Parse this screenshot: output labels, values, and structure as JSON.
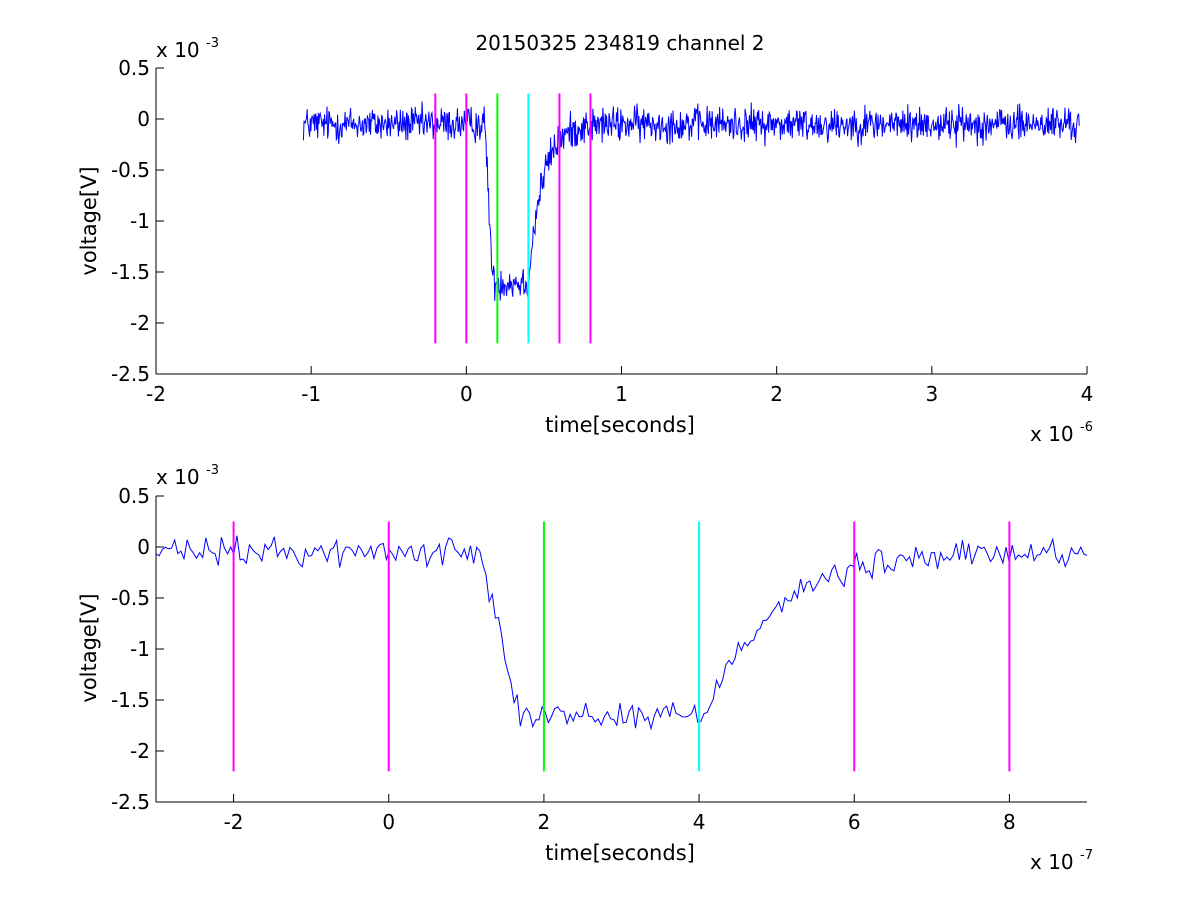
{
  "figure": {
    "title": "20150325 234819 channel 2"
  },
  "colors": {
    "trace": "#0000ff",
    "magenta": "#ff00ff",
    "green": "#00ff00",
    "cyan": "#00ffff",
    "axis": "#000000"
  },
  "chart_data": [
    {
      "type": "line",
      "title": "20150325 234819 channel 2",
      "xlabel": "time[seconds]",
      "ylabel": "voltage[V]",
      "x_multiplier": "x 10",
      "x_exponent": "-6",
      "y_multiplier": "x 10",
      "y_exponent": "-3",
      "xlim": [
        -2,
        4
      ],
      "ylim": [
        -2.5,
        0.5
      ],
      "xticks": [
        -2,
        -1,
        0,
        1,
        2,
        3,
        4
      ],
      "xtick_labels": [
        "-2",
        "-1",
        "0",
        "1",
        "2",
        "3",
        "4"
      ],
      "yticks": [
        -2.5,
        -2,
        -1.5,
        -1,
        -0.5,
        0,
        0.5
      ],
      "ytick_labels": [
        "-2.5",
        "-2",
        "-1.5",
        "-1",
        "-0.5",
        "0",
        "0.5"
      ],
      "grid": false,
      "trace": {
        "x_start": -1.05,
        "x_end": 3.95,
        "baseline": -0.05,
        "low_level": -1.6,
        "fall_start": 0.12,
        "fall_end": 0.17,
        "rise_start": 0.4,
        "rise_end": 0.8,
        "noise_amplitude": 0.15,
        "points": 1250
      },
      "markers": [
        {
          "x": -0.2,
          "color": "magenta",
          "y_from": -2.2,
          "y_to": 0.25
        },
        {
          "x": 0.0,
          "color": "magenta",
          "y_from": -2.2,
          "y_to": 0.25
        },
        {
          "x": 0.2,
          "color": "green",
          "y_from": -2.2,
          "y_to": 0.25
        },
        {
          "x": 0.4,
          "color": "cyan",
          "y_from": -2.2,
          "y_to": 0.25
        },
        {
          "x": 0.6,
          "color": "magenta",
          "y_from": -2.2,
          "y_to": 0.25
        },
        {
          "x": 0.8,
          "color": "magenta",
          "y_from": -2.2,
          "y_to": 0.25
        }
      ]
    },
    {
      "type": "line",
      "title": "",
      "xlabel": "time[seconds]",
      "ylabel": "voltage[V]",
      "x_multiplier": "x 10",
      "x_exponent": "-7",
      "y_multiplier": "x 10",
      "y_exponent": "-3",
      "xlim": [
        -3,
        9
      ],
      "ylim": [
        -2.5,
        0.5
      ],
      "xticks": [
        -2,
        0,
        2,
        4,
        6,
        8
      ],
      "xtick_labels": [
        "-2",
        "0",
        "2",
        "4",
        "6",
        "8"
      ],
      "yticks": [
        -2.5,
        -2,
        -1.5,
        -1,
        -0.5,
        0,
        0.5
      ],
      "ytick_labels": [
        "-2.5",
        "-2",
        "-1.5",
        "-1",
        "-0.5",
        "0",
        "0.5"
      ],
      "grid": false,
      "trace": {
        "x_start": -3,
        "x_end": 9,
        "baseline": -0.05,
        "low_level": -1.65,
        "fall_start": 1.2,
        "fall_end": 1.7,
        "rise_start": 4.05,
        "rise_end": 8.0,
        "noise_amplitude": 0.12,
        "points": 300
      },
      "markers": [
        {
          "x": -2,
          "color": "magenta",
          "y_from": -2.2,
          "y_to": 0.25
        },
        {
          "x": 0,
          "color": "magenta",
          "y_from": -2.2,
          "y_to": 0.25
        },
        {
          "x": 2,
          "color": "green",
          "y_from": -2.2,
          "y_to": 0.25
        },
        {
          "x": 4,
          "color": "cyan",
          "y_from": -2.2,
          "y_to": 0.25
        },
        {
          "x": 6,
          "color": "magenta",
          "y_from": -2.2,
          "y_to": 0.25
        },
        {
          "x": 8,
          "color": "magenta",
          "y_from": -2.2,
          "y_to": 0.25
        }
      ]
    }
  ]
}
